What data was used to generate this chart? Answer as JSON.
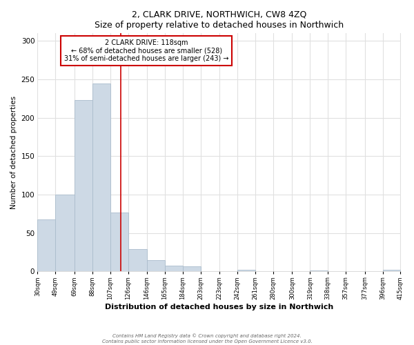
{
  "title": "2, CLARK DRIVE, NORTHWICH, CW8 4ZQ",
  "subtitle": "Size of property relative to detached houses in Northwich",
  "xlabel": "Distribution of detached houses by size in Northwich",
  "ylabel": "Number of detached properties",
  "bar_edges": [
    30,
    49,
    69,
    88,
    107,
    126,
    146,
    165,
    184,
    203,
    223,
    242,
    261,
    280,
    300,
    319,
    338,
    357,
    377,
    396,
    415
  ],
  "bar_heights": [
    68,
    100,
    223,
    245,
    77,
    29,
    15,
    8,
    7,
    0,
    0,
    2,
    0,
    0,
    0,
    1,
    0,
    0,
    0,
    2
  ],
  "bar_color": "#cdd9e5",
  "bar_edge_color": "#aabccc",
  "property_size": 118,
  "vline_color": "#cc0000",
  "annotation_box_color": "#ffffff",
  "annotation_box_edge": "#cc0000",
  "annotation_line1": "2 CLARK DRIVE: 118sqm",
  "annotation_line2": "← 68% of detached houses are smaller (528)",
  "annotation_line3": "31% of semi-detached houses are larger (243) →",
  "ylim": [
    0,
    310
  ],
  "yticks": [
    0,
    50,
    100,
    150,
    200,
    250,
    300
  ],
  "tick_labels": [
    "30sqm",
    "49sqm",
    "69sqm",
    "88sqm",
    "107sqm",
    "126sqm",
    "146sqm",
    "165sqm",
    "184sqm",
    "203sqm",
    "223sqm",
    "242sqm",
    "261sqm",
    "280sqm",
    "300sqm",
    "319sqm",
    "338sqm",
    "357sqm",
    "377sqm",
    "396sqm",
    "415sqm"
  ],
  "footer_line1": "Contains HM Land Registry data © Crown copyright and database right 2024.",
  "footer_line2": "Contains public sector information licensed under the Open Government Licence v3.0.",
  "bg_color": "#ffffff",
  "grid_color": "#e0e0e0"
}
